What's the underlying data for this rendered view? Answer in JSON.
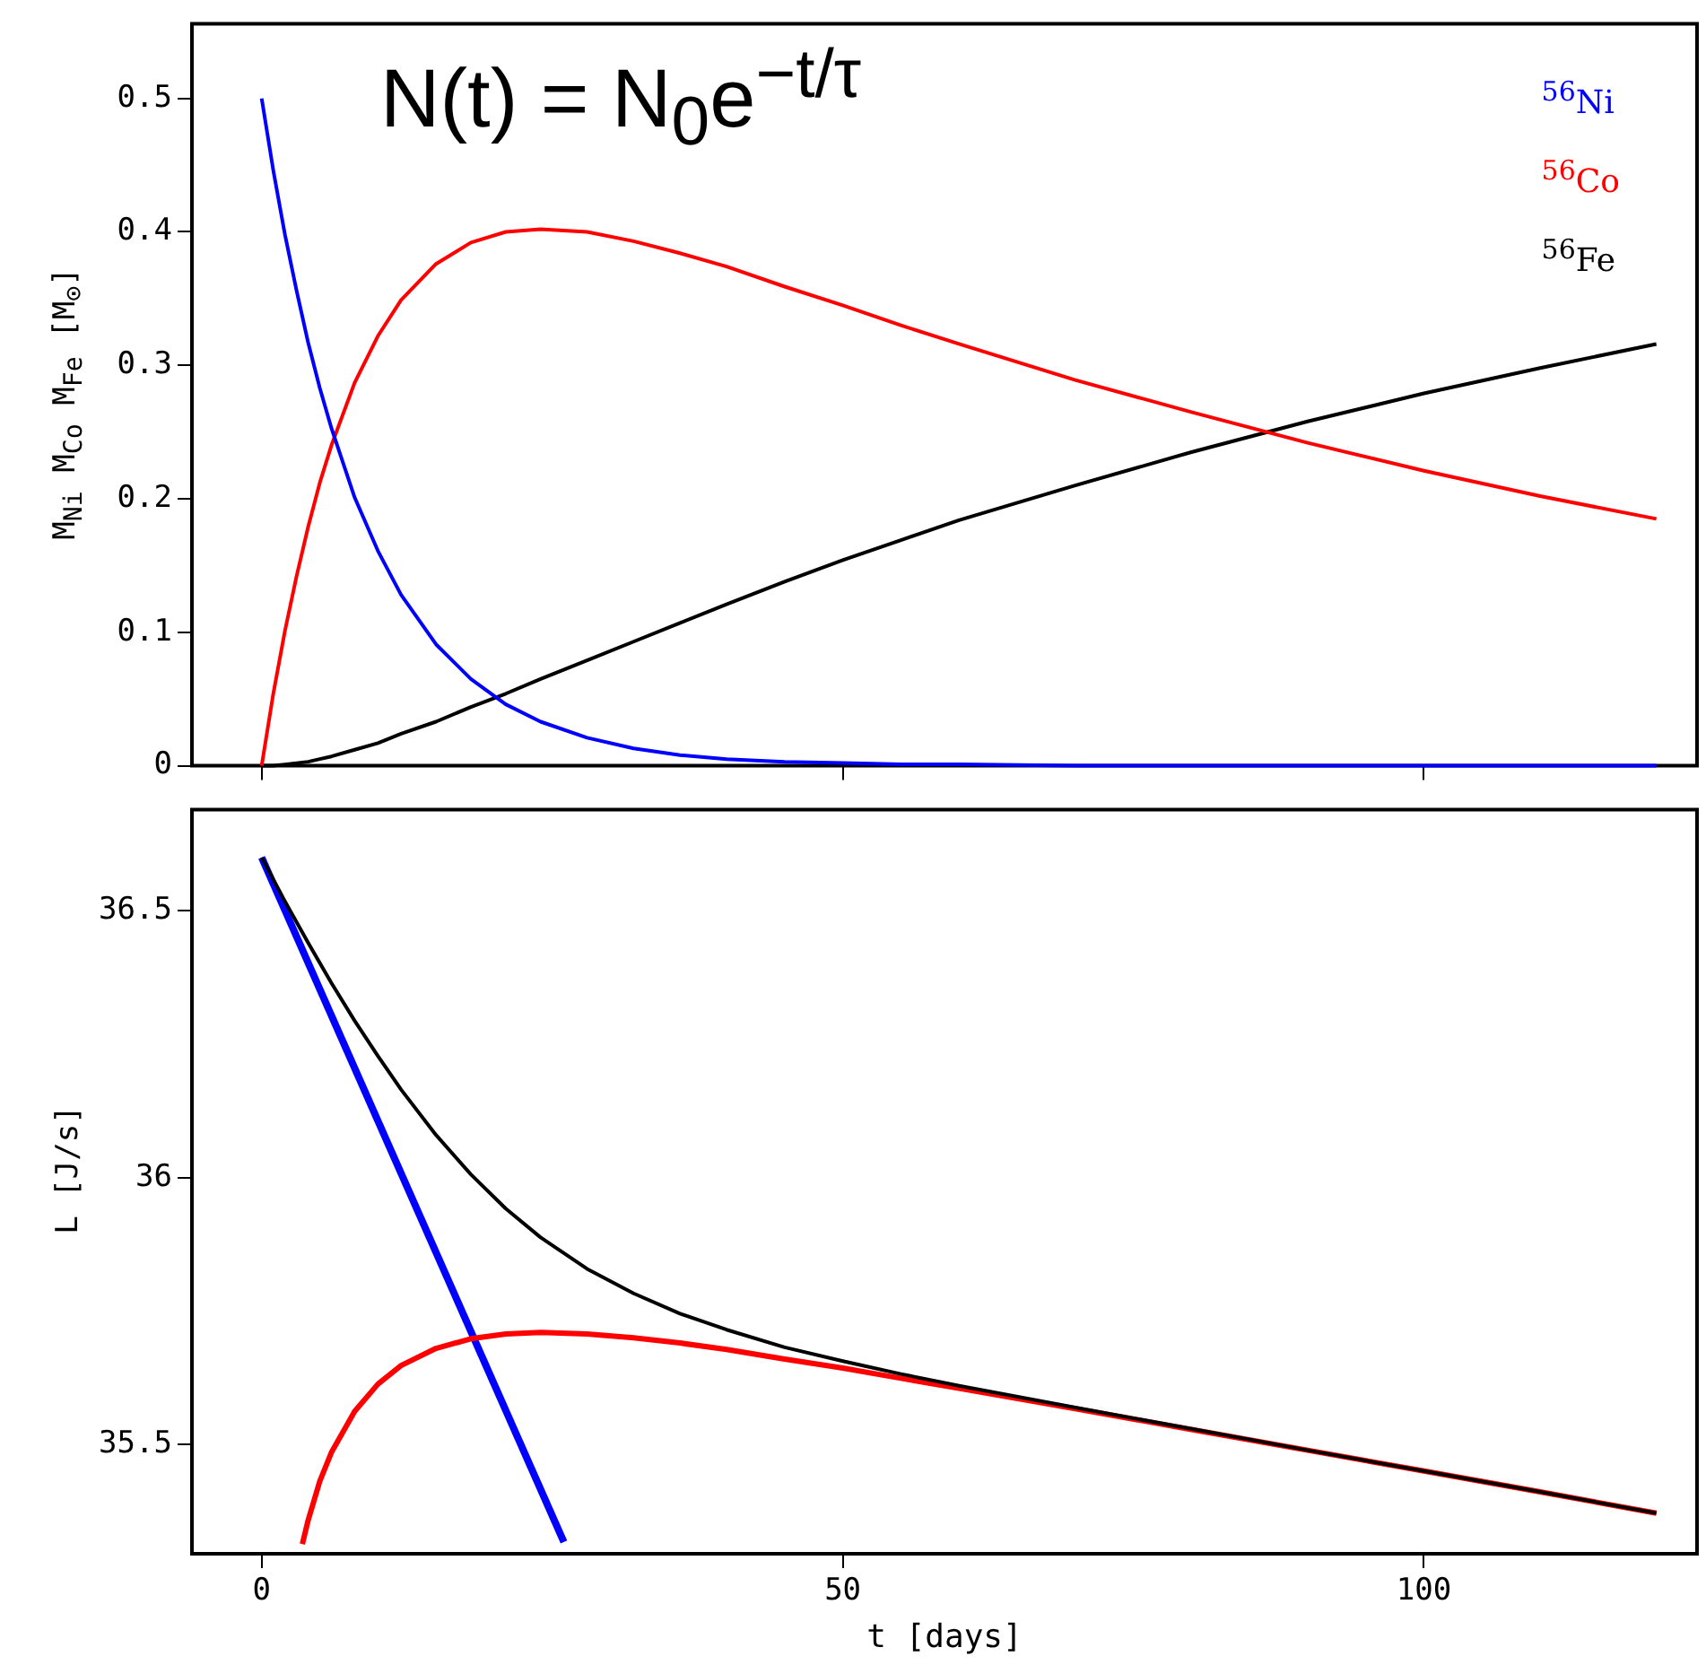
{
  "chart_data": [
    {
      "type": "line",
      "ylabel": "M$_{Ni}$ M$_{Co}$ M$_{Fe}$ [M$_{⊙}$]",
      "annotations": [
        "N(t) = N$_{0}$e$^{−t/τ}$"
      ],
      "legend": "top right",
      "grid": false,
      "marker": "none",
      "line_style": "solid",
      "tick_labels": "y",
      "x": [
        0,
        1,
        2,
        3,
        4,
        5,
        6,
        8,
        10,
        12,
        15,
        18,
        21,
        24,
        28,
        32,
        36,
        40,
        45,
        50,
        55,
        60,
        70,
        80,
        90,
        100,
        110,
        120
      ],
      "series": [
        {
          "name": "$^{56}$Ni",
          "color": "#0000ff",
          "values": [
            0.5,
            0.446,
            0.398,
            0.356,
            0.317,
            0.283,
            0.253,
            0.201,
            0.161,
            0.128,
            0.091,
            0.065,
            0.046,
            0.033,
            0.021,
            0.013,
            0.008,
            0.005,
            0.003,
            0.002,
            0.001,
            0.001,
            0,
            0,
            0,
            0,
            0,
            0
          ]
        },
        {
          "name": "$^{56}$Co",
          "color": "#ff0000",
          "values": [
            0,
            0.054,
            0.101,
            0.142,
            0.179,
            0.212,
            0.24,
            0.287,
            0.322,
            0.349,
            0.376,
            0.392,
            0.4,
            0.402,
            0.4,
            0.393,
            0.384,
            0.374,
            0.359,
            0.345,
            0.33,
            0.316,
            0.289,
            0.265,
            0.242,
            0.221,
            0.202,
            0.185
          ]
        },
        {
          "name": "$^{56}$Fe",
          "color": "#000000",
          "values": [
            0,
            0,
            0.001,
            0.002,
            0.003,
            0.005,
            0.007,
            0.012,
            0.017,
            0.024,
            0.033,
            0.044,
            0.054,
            0.065,
            0.079,
            0.093,
            0.107,
            0.121,
            0.138,
            0.154,
            0.169,
            0.184,
            0.21,
            0.235,
            0.258,
            0.279,
            0.298,
            0.316
          ]
        }
      ],
      "xlim": [
        -6,
        123.5
      ],
      "xticks": [
        0,
        50,
        100
      ],
      "ylim": [
        0,
        0.556
      ],
      "yticks": [
        0,
        0.1,
        0.2,
        0.3,
        0.4,
        0.5
      ]
    },
    {
      "type": "line",
      "xlabel": "t [days]",
      "ylabel": "L [J/s]",
      "grid": false,
      "marker": "none",
      "line_style": "solid",
      "series": [
        {
          "color": "#000000",
          "x": [
            0,
            2,
            4,
            6,
            8,
            10,
            12,
            15,
            18,
            21,
            24,
            28,
            32,
            36,
            40,
            45,
            50,
            55,
            60,
            70,
            80,
            90,
            100,
            110,
            120
          ],
          "values": [
            36.6,
            36.518,
            36.44,
            36.365,
            36.294,
            36.228,
            36.165,
            36.08,
            36.006,
            35.942,
            35.888,
            35.829,
            35.783,
            35.745,
            35.715,
            35.682,
            35.656,
            35.632,
            35.61,
            35.569,
            35.529,
            35.489,
            35.45,
            35.411,
            35.371
          ]
        },
        {
          "color": "#ff0000",
          "x": [
            3.5,
            4,
            5,
            6,
            8,
            10,
            12,
            15,
            18,
            21,
            24,
            28,
            32,
            36,
            40,
            45,
            50,
            55,
            60,
            70,
            80,
            90,
            100,
            110,
            120
          ],
          "values": [
            35.313,
            35.358,
            35.431,
            35.485,
            35.562,
            35.613,
            35.648,
            35.68,
            35.698,
            35.707,
            35.71,
            35.707,
            35.7,
            35.69,
            35.678,
            35.66,
            35.643,
            35.624,
            35.605,
            35.567,
            35.528,
            35.489,
            35.45,
            35.411,
            35.371
          ]
        },
        {
          "color": "#0000ff",
          "x": [
            0,
            26
          ],
          "values": [
            36.6,
            35.317
          ]
        }
      ],
      "xlim": [
        -6,
        123.5
      ],
      "xticks": [
        0,
        50,
        100
      ],
      "ylim": [
        35.295,
        36.69
      ],
      "yticks": [
        35.5,
        36,
        36.5
      ]
    }
  ]
}
